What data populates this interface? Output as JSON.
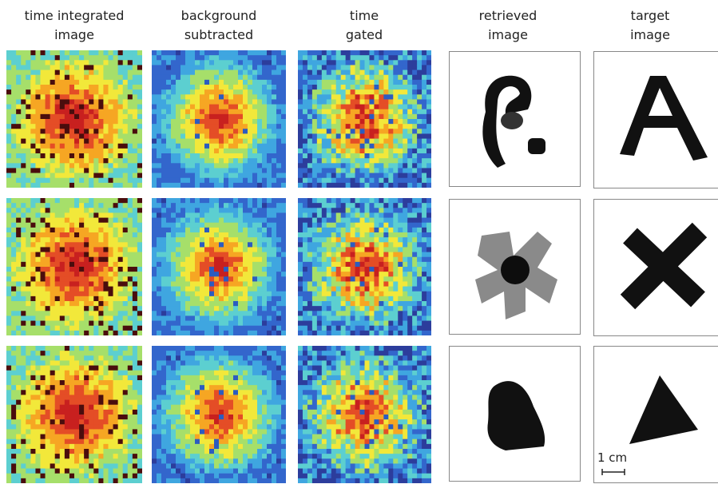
{
  "columns": [
    {
      "lines": [
        "time integrated",
        "image"
      ]
    },
    {
      "lines": [
        "background",
        "subtracted"
      ]
    },
    {
      "lines": [
        "time",
        "gated"
      ]
    },
    {
      "lines": [
        "retrieved",
        "image"
      ]
    },
    {
      "lines": [
        "target",
        "image"
      ]
    }
  ],
  "scale_bar": {
    "label": "1 cm"
  }
}
